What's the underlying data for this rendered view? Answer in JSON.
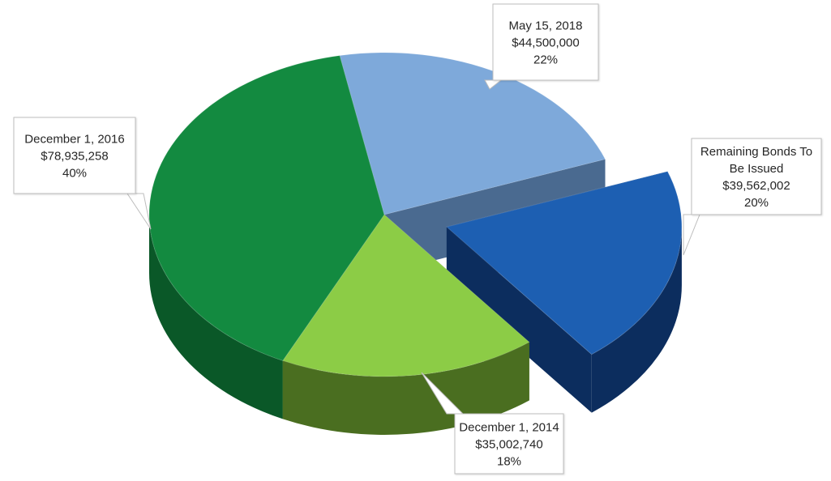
{
  "chart_data": {
    "type": "pie",
    "style": "3d-exploded",
    "title": "",
    "slices": [
      {
        "label": "Remaining Bonds To Be Issued",
        "amount": "$39,562,002",
        "value": 39562002,
        "percent": "20%",
        "color": "#1d5fb2",
        "side_color": "#0c2d5e",
        "exploded": true
      },
      {
        "label": "December 1, 2014",
        "amount": "$35,002,740",
        "value": 35002740,
        "percent": "18%",
        "color": "#8ccc46",
        "side_color": "#4a6e20",
        "exploded": false
      },
      {
        "label": "December 1, 2016",
        "amount": "$78,935,258",
        "value": 78935258,
        "percent": "40%",
        "color": "#138a40",
        "side_color": "#0a5828",
        "exploded": false
      },
      {
        "label": "May 15, 2018",
        "amount": "$44,500,000",
        "value": 44500000,
        "percent": "22%",
        "color": "#7ea9da",
        "side_color": "#4a6a90",
        "exploded": false
      }
    ]
  }
}
